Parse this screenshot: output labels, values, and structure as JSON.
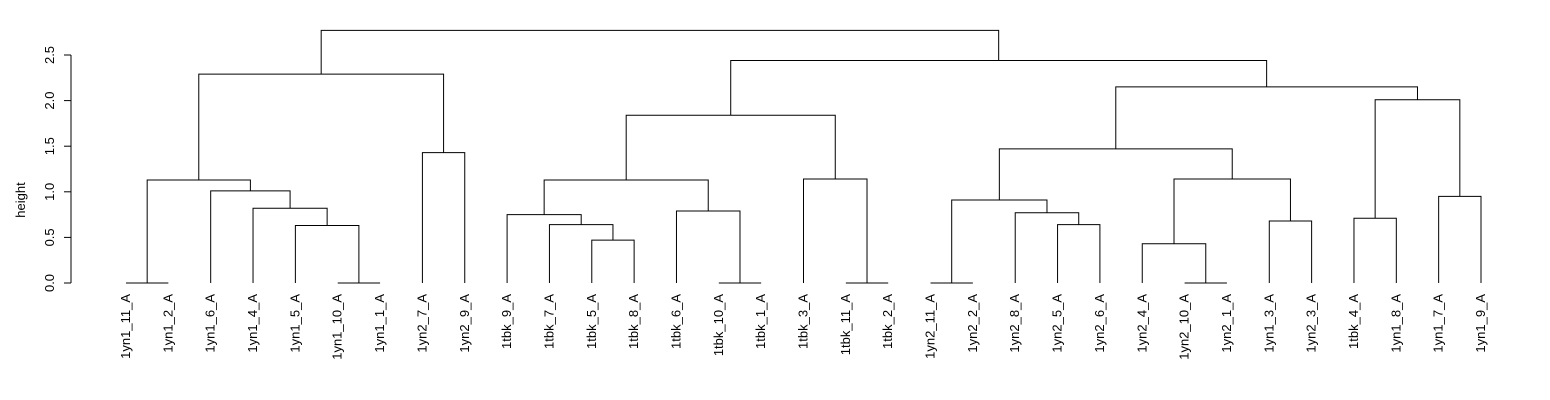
{
  "chart_data": {
    "type": "dendrogram",
    "ylabel": "height",
    "ylim": [
      0,
      2.8
    ],
    "y_ticks": [
      "0.0",
      "0.5",
      "1.0",
      "1.5",
      "2.0",
      "2.5"
    ],
    "leaves": [
      "1yn1_11_A",
      "1yn1_2_A",
      "1yn1_6_A",
      "1yn1_4_A",
      "1yn1_5_A",
      "1yn1_10_A",
      "1yn1_1_A",
      "1yn2_7_A",
      "1yn2_9_A",
      "1tbk_9_A",
      "1tbk_7_A",
      "1tbk_5_A",
      "1tbk_8_A",
      "1tbk_6_A",
      "1tbk_10_A",
      "1tbk_1_A",
      "1tbk_3_A",
      "1tbk_11_A",
      "1tbk_2_A",
      "1yn2_11_A",
      "1yn2_2_A",
      "1yn2_8_A",
      "1yn2_5_A",
      "1yn2_6_A",
      "1yn2_4_A",
      "1yn2_10_A",
      "1yn2_1_A",
      "1yn1_3_A",
      "1yn2_3_A",
      "1tbk_4_A",
      "1yn1_8_A",
      "1yn1_7_A",
      "1yn1_9_A"
    ],
    "merges": [
      {
        "a": "L0",
        "b": "L1",
        "height": 0.0
      },
      {
        "a": "L5",
        "b": "L6",
        "height": 0.0
      },
      {
        "a": "L4",
        "b": "N1",
        "height": 0.63
      },
      {
        "a": "L3",
        "b": "N2",
        "height": 0.82
      },
      {
        "a": "L2",
        "b": "N3",
        "height": 1.01
      },
      {
        "a": "N0",
        "b": "N4",
        "height": 1.13
      },
      {
        "a": "L7",
        "b": "L8",
        "height": 1.43
      },
      {
        "a": "N5",
        "b": "N6",
        "height": 2.29
      },
      {
        "a": "L11",
        "b": "L12",
        "height": 0.47
      },
      {
        "a": "L10",
        "b": "N8",
        "height": 0.64
      },
      {
        "a": "L9",
        "b": "N9",
        "height": 0.75
      },
      {
        "a": "L14",
        "b": "L15",
        "height": 0.0
      },
      {
        "a": "L13",
        "b": "N11",
        "height": 0.79
      },
      {
        "a": "N10",
        "b": "N12",
        "height": 1.13
      },
      {
        "a": "L17",
        "b": "L18",
        "height": 0.0
      },
      {
        "a": "L16",
        "b": "N14",
        "height": 1.14
      },
      {
        "a": "N13",
        "b": "N15",
        "height": 1.84
      },
      {
        "a": "L19",
        "b": "L20",
        "height": 0.0
      },
      {
        "a": "L22",
        "b": "L23",
        "height": 0.64
      },
      {
        "a": "L21",
        "b": "N18",
        "height": 0.77
      },
      {
        "a": "N17",
        "b": "N19",
        "height": 0.91
      },
      {
        "a": "L25",
        "b": "L26",
        "height": 0.0
      },
      {
        "a": "L24",
        "b": "N21",
        "height": 0.43
      },
      {
        "a": "L27",
        "b": "L28",
        "height": 0.68
      },
      {
        "a": "N22",
        "b": "N23",
        "height": 1.14
      },
      {
        "a": "N20",
        "b": "N24",
        "height": 1.47
      },
      {
        "a": "L29",
        "b": "L30",
        "height": 0.71
      },
      {
        "a": "L31",
        "b": "L32",
        "height": 0.95
      },
      {
        "a": "N26",
        "b": "N27",
        "height": 2.01
      },
      {
        "a": "N25",
        "b": "N28",
        "height": 2.15
      },
      {
        "a": "N16",
        "b": "N29",
        "height": 2.44
      },
      {
        "a": "N7",
        "b": "N30",
        "height": 2.77
      }
    ]
  }
}
